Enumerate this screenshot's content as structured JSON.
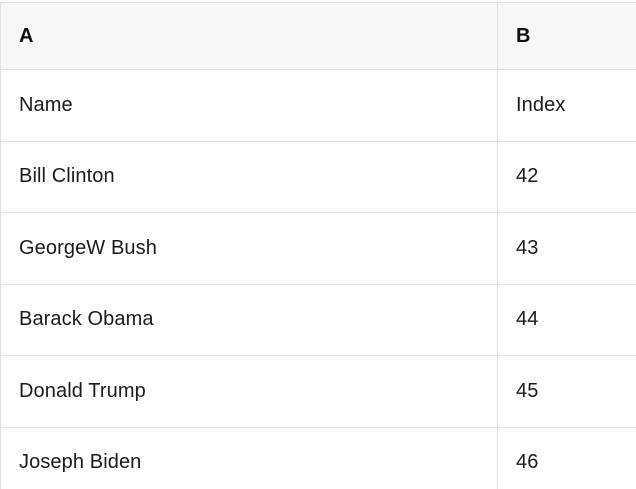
{
  "table": {
    "columns": [
      {
        "label": "A"
      },
      {
        "label": "B"
      }
    ],
    "rows": [
      {
        "cells": [
          "Name",
          "Index"
        ]
      },
      {
        "cells": [
          "Bill Clinton",
          "42"
        ]
      },
      {
        "cells": [
          "GeorgeW Bush",
          "43"
        ]
      },
      {
        "cells": [
          "Barack Obama",
          "44"
        ]
      },
      {
        "cells": [
          "Donald Trump",
          "45"
        ]
      },
      {
        "cells": [
          "Joseph Biden",
          "46"
        ]
      }
    ]
  },
  "colors": {
    "header_background": "#f7f7f7",
    "grid_border": "#e1e1e1",
    "text": "#1b1b1b",
    "row_background": "#ffffff"
  }
}
